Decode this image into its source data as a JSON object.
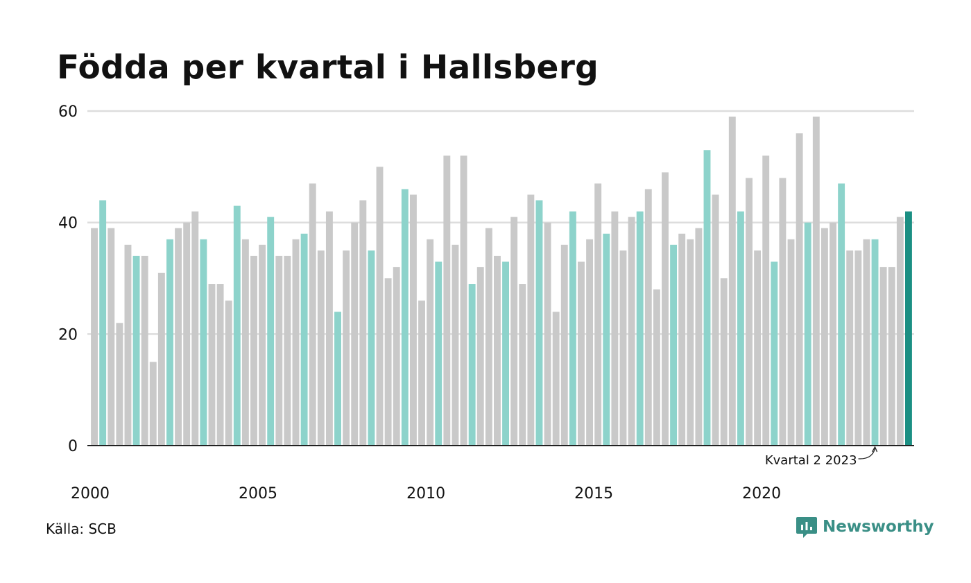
{
  "title": "Födda per kvartal i Hallsberg",
  "source": "Källa: SCB",
  "brand": {
    "name": "Newsworthy",
    "icon": "newsworthy-logo-icon"
  },
  "colors": {
    "bar_default": "#c9c9c9",
    "bar_q2": "#8dd3cb",
    "bar_latest": "#1b8f83",
    "gridline": "#dddddd",
    "axis": "#222222"
  },
  "chart_data": {
    "type": "bar",
    "title": "Födda per kvartal i Hallsberg",
    "xlabel": "",
    "ylabel": "",
    "ylim": [
      0,
      60
    ],
    "y_ticks": [
      0,
      20,
      40,
      60
    ],
    "x_tick_labels": [
      "2000",
      "2005",
      "2010",
      "2015",
      "2020"
    ],
    "start_year": 2000,
    "grid": true,
    "highlight_quarter": 2,
    "annotation": "Kvartal 2 2023",
    "values": [
      39,
      44,
      39,
      22,
      36,
      34,
      34,
      15,
      31,
      37,
      39,
      40,
      42,
      37,
      29,
      29,
      26,
      43,
      37,
      34,
      36,
      41,
      34,
      34,
      37,
      38,
      47,
      35,
      42,
      24,
      35,
      40,
      44,
      35,
      50,
      30,
      32,
      46,
      45,
      26,
      37,
      33,
      52,
      36,
      52,
      29,
      32,
      39,
      34,
      33,
      41,
      29,
      45,
      44,
      40,
      24,
      36,
      42,
      33,
      37,
      47,
      38,
      42,
      35,
      41,
      42,
      46,
      28,
      49,
      36,
      38,
      37,
      39,
      53,
      45,
      30,
      59,
      42,
      48,
      35,
      52,
      33,
      48,
      37,
      56,
      40,
      59,
      39,
      40,
      47,
      35,
      35,
      37,
      37,
      32,
      32,
      41,
      42
    ]
  }
}
